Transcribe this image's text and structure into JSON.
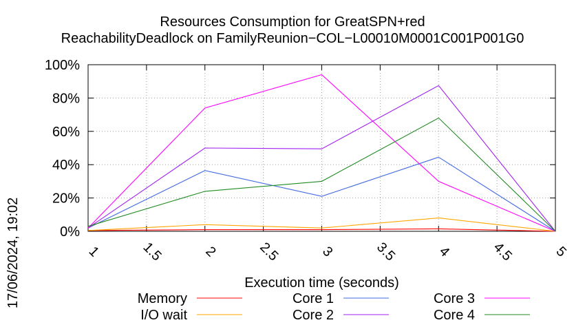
{
  "chart_data": {
    "type": "line",
    "title_lines": [
      "Resources Consumption for GreatSPN+red",
      "ReachabilityDeadlock on FamilyReunion−COL−L00010M0001C001P001G0"
    ],
    "xlabel": "Execution time (seconds)",
    "ylabel": "",
    "side_stamp": "17/06/2024, 19:02",
    "xlim": [
      1,
      5
    ],
    "ylim": [
      0,
      100
    ],
    "x_ticks": [
      "1",
      "1.5",
      "2",
      "2.5",
      "3",
      "3.5",
      "4",
      "4.5",
      "5"
    ],
    "y_ticks": [
      "0%",
      "20%",
      "40%",
      "60%",
      "80%",
      "100%"
    ],
    "grid": true,
    "legend_position": "bottom",
    "x": [
      1,
      2,
      3,
      4,
      5
    ],
    "series": [
      {
        "name": "Memory",
        "color": "#ff0000",
        "values": [
          0.5,
          1,
          1,
          1.5,
          0
        ]
      },
      {
        "name": "I/O wait",
        "color": "#ffa500",
        "values": [
          0.5,
          4,
          2,
          8,
          0
        ]
      },
      {
        "name": "Core 1",
        "color": "#4169e1",
        "values": [
          2,
          36.5,
          21,
          44.5,
          0
        ]
      },
      {
        "name": "Core 2",
        "color": "#a020f0",
        "values": [
          2,
          50,
          49.5,
          87.5,
          0
        ]
      },
      {
        "name": "Core 3",
        "color": "#ff00ff",
        "values": [
          2,
          74,
          94,
          30,
          0
        ]
      },
      {
        "name": "Core 4",
        "color": "#228b22",
        "values": [
          3,
          24,
          30,
          68,
          0
        ]
      }
    ]
  }
}
